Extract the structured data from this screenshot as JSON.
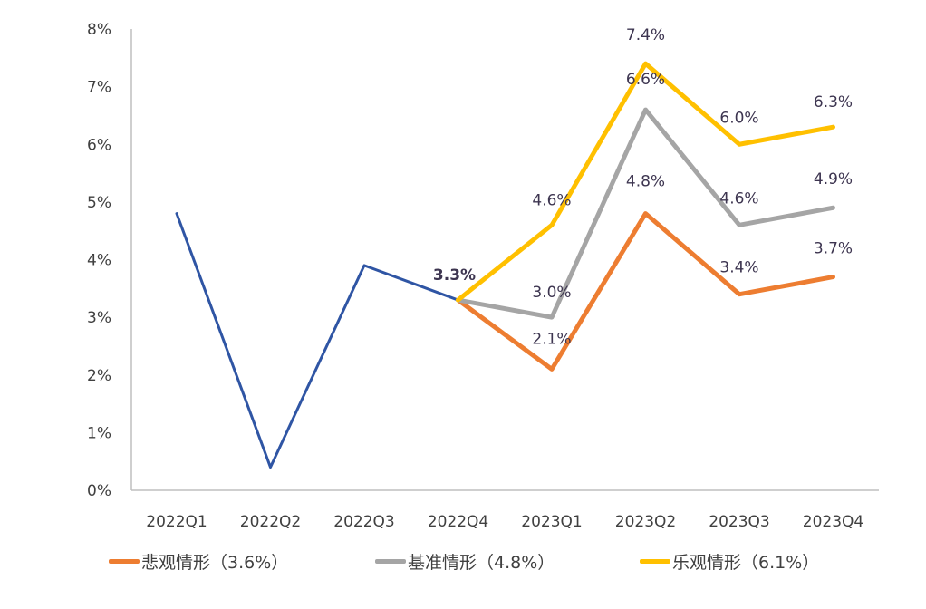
{
  "chart_data": {
    "type": "line",
    "categories": [
      "2022Q1",
      "2022Q2",
      "2022Q3",
      "2022Q4",
      "2023Q1",
      "2023Q2",
      "2023Q3",
      "2023Q4"
    ],
    "ylim": [
      0,
      8
    ],
    "yticks": [
      "0%",
      "1%",
      "2%",
      "3%",
      "4%",
      "5%",
      "6%",
      "7%",
      "8%"
    ],
    "grid": false,
    "legend_position": "bottom",
    "series": [
      {
        "key": "actual",
        "color": "#2f55a4",
        "values": [
          4.8,
          0.4,
          3.9,
          3.3,
          null,
          null,
          null,
          null
        ],
        "labels": []
      },
      {
        "key": "pessimistic",
        "name": "悲观情形（3.6%）",
        "color": "#ed7d31",
        "values": [
          null,
          null,
          null,
          3.3,
          2.1,
          4.8,
          3.4,
          3.7
        ],
        "labels": [
          "",
          "",
          "",
          "",
          "2.1%",
          "4.8%",
          "3.4%",
          "3.7%"
        ]
      },
      {
        "key": "baseline",
        "name": "基准情形（4.8%）",
        "color": "#a5a5a5",
        "values": [
          null,
          null,
          null,
          3.3,
          3.0,
          6.6,
          4.6,
          4.9
        ],
        "labels": [
          "",
          "",
          "",
          "3.3%",
          "3.0%",
          "6.6%",
          "4.6%",
          "4.9%"
        ]
      },
      {
        "key": "optimistic",
        "name": "乐观情形（6.1%）",
        "color": "#ffc000",
        "values": [
          null,
          null,
          null,
          3.3,
          4.6,
          7.4,
          6.0,
          6.3
        ],
        "labels": [
          "",
          "",
          "",
          "",
          "4.6%",
          "7.4%",
          "6.0%",
          "6.3%"
        ]
      }
    ]
  }
}
